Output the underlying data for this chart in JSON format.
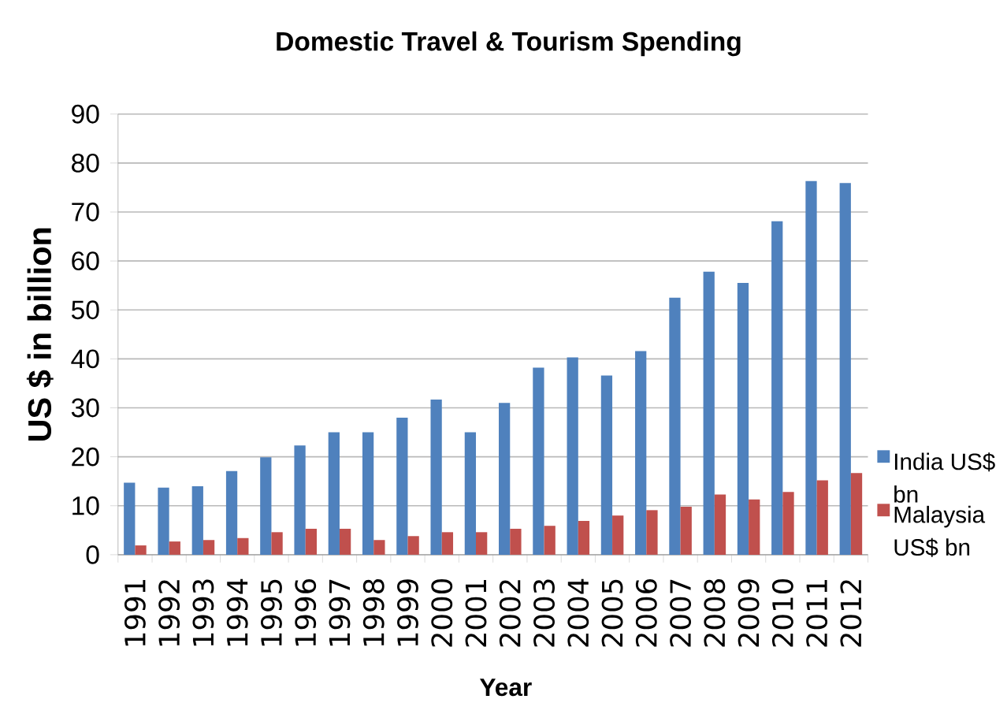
{
  "chart_data": {
    "type": "bar",
    "title": "Domestic Travel & Tourism Spending",
    "xlabel": "Year",
    "ylabel": "US $ in billion",
    "categories": [
      "1991",
      "1992",
      "1993",
      "1994",
      "1995",
      "1996",
      "1997",
      "1998",
      "1999",
      "2000",
      "2001",
      "2002",
      "2003",
      "2004",
      "2005",
      "2006",
      "2007",
      "2008",
      "2009",
      "2010",
      "2011",
      "2012"
    ],
    "series": [
      {
        "name": "India US$ bn",
        "color": "#4f81bd",
        "values": [
          14.7,
          13.7,
          14.0,
          17.1,
          19.9,
          22.3,
          25.0,
          25.0,
          28.0,
          31.7,
          25.0,
          31.0,
          38.2,
          40.3,
          36.6,
          41.6,
          52.5,
          57.8,
          55.5,
          68.1,
          76.3,
          75.9
        ]
      },
      {
        "name": "Malaysia US$ bn",
        "color": "#c0504d",
        "values": [
          1.9,
          2.7,
          3.0,
          3.4,
          4.6,
          5.3,
          5.3,
          3.0,
          3.8,
          4.6,
          4.6,
          5.3,
          5.9,
          6.9,
          8.0,
          9.1,
          9.8,
          12.3,
          11.3,
          12.8,
          15.2,
          16.7
        ]
      }
    ],
    "ylim": [
      0,
      90
    ],
    "yticks": [
      0,
      10,
      20,
      30,
      40,
      50,
      60,
      70,
      80,
      90
    ],
    "grid": "y",
    "legend": "right"
  }
}
